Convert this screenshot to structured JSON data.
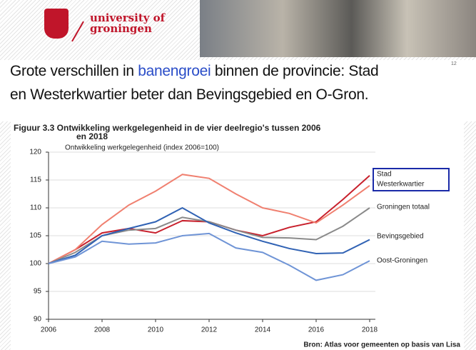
{
  "slide": {
    "logo_text": [
      "university of",
      "groningen"
    ],
    "page_number": "12",
    "heading": [
      "Grote verschillen in ",
      "banengroei",
      " binnen de provincie: Stad",
      "en Westerkwartier beter dan Bevingsgebied en O-Gron."
    ]
  },
  "chart_data": {
    "type": "line",
    "title": [
      "Figuur 3.3   Ontwikkeling werkgelegenheid in de vier deelregio's tussen 2006",
      "en 2018"
    ],
    "subtitle": "Ontwikkeling werkgelegenheid (index 2006=100)",
    "source": "Bron: Atlas voor gemeenten op basis van Lisa",
    "x": [
      2006,
      2007,
      2008,
      2009,
      2010,
      2011,
      2012,
      2013,
      2014,
      2015,
      2016,
      2017,
      2018
    ],
    "xlim": [
      2006,
      2018
    ],
    "xticks": [
      2006,
      2008,
      2010,
      2012,
      2014,
      2016,
      2018
    ],
    "ylim": [
      90,
      120
    ],
    "yticks": [
      90,
      95,
      100,
      105,
      110,
      115,
      120
    ],
    "grid": true,
    "series": [
      {
        "name": "Stad",
        "color": "#c8202c",
        "values": [
          100,
          102.5,
          105.5,
          106.3,
          105.5,
          107.7,
          107.5,
          106,
          105,
          106.5,
          107.5,
          111.5,
          115.8
        ]
      },
      {
        "name": "Westerkwartier",
        "color": "#f08070",
        "values": [
          100,
          102.5,
          107,
          110.5,
          113,
          116,
          115.3,
          112.5,
          110,
          109,
          107.3,
          110.5,
          114
        ]
      },
      {
        "name": "Groningen totaal",
        "color": "#8a8a8a",
        "values": [
          100,
          102,
          105,
          106,
          106.3,
          108.3,
          107.5,
          106,
          104.7,
          104.6,
          104.3,
          106.7,
          110
        ]
      },
      {
        "name": "Bevingsgebied",
        "color": "#3062b4",
        "values": [
          100,
          101.5,
          105,
          106.3,
          107.5,
          110,
          107.3,
          105.5,
          104,
          102.7,
          101.8,
          101.9,
          104.3
        ]
      },
      {
        "name": "Oost-Groningen",
        "color": "#6f94d6",
        "values": [
          100,
          101.2,
          104,
          103.5,
          103.7,
          105,
          105.4,
          102.8,
          102,
          99.7,
          97,
          98,
          100.5
        ]
      }
    ]
  }
}
